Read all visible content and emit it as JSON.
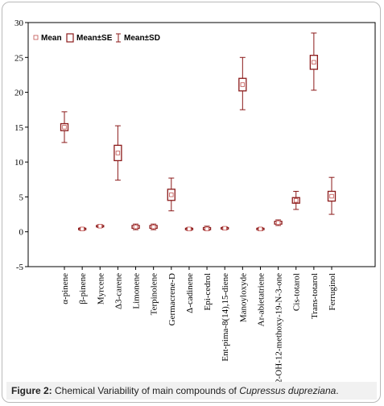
{
  "chart_data": {
    "type": "box",
    "categories": [
      "α-pinene",
      "β-pinene",
      "Myrcene",
      "Δ3-carene",
      "Limonene",
      "Terpinolene",
      "Germacrene-D",
      "Δ-cadinene",
      "Epi-cedrol",
      "Ent-pima-8(14),15-diene",
      "Manoyloxyde",
      "Ar-abietatriene",
      "2-OH-12-methoxy-19-N-3-one",
      "Cis-totarol",
      "Trans-totarol",
      "Ferruginol"
    ],
    "mean": [
      15.0,
      0.4,
      0.8,
      11.3,
      0.7,
      0.7,
      5.3,
      0.4,
      0.4,
      0.5,
      21.1,
      0.4,
      1.3,
      4.5,
      24.3,
      5.1
    ],
    "se_low": [
      14.5,
      0.3,
      0.7,
      10.2,
      0.5,
      0.5,
      4.5,
      0.3,
      0.3,
      0.4,
      20.2,
      0.3,
      1.1,
      4.1,
      23.3,
      4.4
    ],
    "se_high": [
      15.5,
      0.5,
      0.9,
      12.4,
      0.9,
      0.9,
      6.1,
      0.5,
      0.6,
      0.6,
      22.0,
      0.5,
      1.5,
      4.9,
      25.3,
      5.8
    ],
    "sd_low": [
      12.8,
      0.2,
      0.6,
      7.4,
      0.3,
      0.3,
      3.0,
      0.2,
      0.2,
      0.3,
      17.5,
      0.2,
      0.9,
      3.2,
      20.3,
      2.5
    ],
    "sd_high": [
      17.2,
      0.6,
      1.0,
      15.2,
      1.1,
      1.1,
      7.7,
      0.6,
      0.8,
      0.7,
      25.0,
      0.6,
      1.7,
      5.8,
      28.5,
      7.8
    ],
    "ylim": [
      -5,
      30
    ],
    "yticks": [
      -5,
      0,
      5,
      10,
      15,
      20,
      25,
      30
    ],
    "legend": {
      "position": "top-left",
      "entries": [
        "Mean",
        "Mean±SE",
        "Mean±SD"
      ]
    },
    "colors": {
      "box": "#8b1a1a",
      "mean_marker": "#c0504d"
    },
    "grid": false
  },
  "caption": {
    "label": "Figure 2:",
    "text": " Chemical Variability of main compounds of ",
    "species": "Cupressus dupreziana",
    "end": "."
  }
}
